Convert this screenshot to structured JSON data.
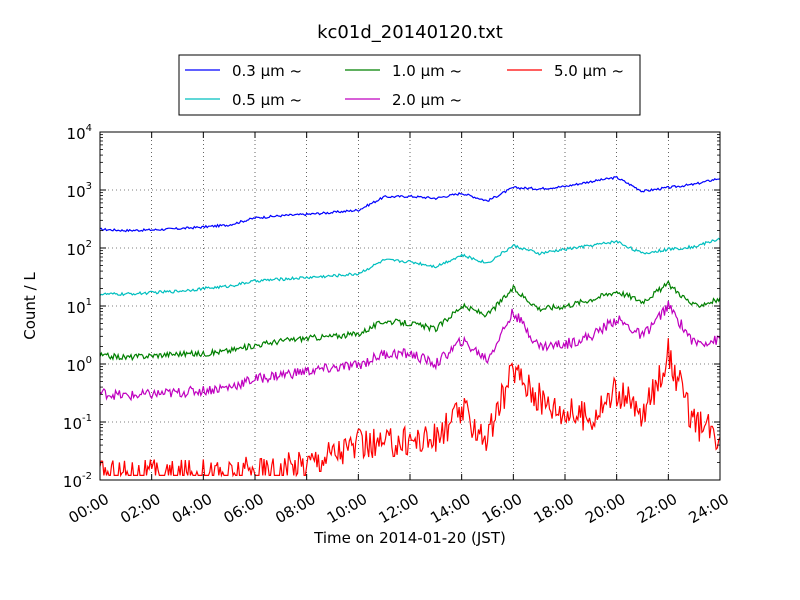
{
  "chart_data": {
    "type": "line",
    "title": "kc01d_20140120.txt",
    "xlabel": "Time on 2014-01-20 (JST)",
    "ylabel": "Count / L",
    "yscale": "log",
    "xlim": [
      "00:00",
      "24:00"
    ],
    "ylim": [
      0.01,
      10000
    ],
    "x_ticks": [
      "00:00",
      "02:00",
      "04:00",
      "06:00",
      "08:00",
      "10:00",
      "12:00",
      "14:00",
      "16:00",
      "18:00",
      "20:00",
      "22:00",
      "24:00"
    ],
    "y_ticks": [
      {
        "value": 0.01,
        "base": "10",
        "exp": "-2"
      },
      {
        "value": 0.1,
        "base": "10",
        "exp": "-1"
      },
      {
        "value": 1,
        "base": "10",
        "exp": "0"
      },
      {
        "value": 10,
        "base": "10",
        "exp": "1"
      },
      {
        "value": 100,
        "base": "10",
        "exp": "2"
      },
      {
        "value": 1000,
        "base": "10",
        "exp": "3"
      },
      {
        "value": 10000,
        "base": "10",
        "exp": "4"
      }
    ],
    "grid": true,
    "legend_position": "top-center",
    "x_hours": [
      0,
      1,
      2,
      3,
      4,
      5,
      6,
      7,
      8,
      9,
      10,
      11,
      12,
      13,
      14,
      15,
      16,
      17,
      18,
      19,
      20,
      21,
      22,
      23,
      24
    ],
    "series": [
      {
        "name": "0.3 μm ~",
        "color": "#0000ff",
        "values": [
          210,
          200,
          205,
          215,
          230,
          250,
          330,
          360,
          380,
          410,
          450,
          760,
          780,
          720,
          880,
          650,
          1100,
          1050,
          1150,
          1400,
          1650,
          950,
          1100,
          1250,
          1600
        ]
      },
      {
        "name": "0.5 μm ~",
        "color": "#00bfbf",
        "values": [
          16,
          16,
          17,
          18,
          20,
          22,
          27,
          29,
          31,
          33,
          36,
          62,
          58,
          48,
          75,
          55,
          110,
          80,
          95,
          110,
          130,
          80,
          95,
          105,
          145
        ]
      },
      {
        "name": "1.0 μm ~",
        "color": "#008000",
        "values": [
          1.4,
          1.3,
          1.4,
          1.5,
          1.5,
          1.7,
          2.1,
          2.5,
          2.8,
          3.0,
          3.3,
          5.5,
          5.0,
          4.0,
          10,
          7,
          20,
          9,
          10,
          13,
          18,
          12,
          24,
          10,
          13
        ]
      },
      {
        "name": "2.0 μm ~",
        "color": "#bf00bf",
        "values": [
          0.32,
          0.28,
          0.3,
          0.32,
          0.35,
          0.4,
          0.55,
          0.65,
          0.75,
          0.85,
          0.95,
          1.5,
          1.5,
          1.0,
          2.5,
          1.2,
          8.0,
          2.0,
          2.2,
          3.0,
          6.0,
          3.0,
          10,
          2.3,
          2.6
        ]
      },
      {
        "name": "5.0 μm ~",
        "color": "#ff0000",
        "values": [
          0.012,
          0.013,
          0.012,
          0.012,
          0.013,
          0.012,
          0.014,
          0.015,
          0.02,
          0.03,
          0.04,
          0.04,
          0.05,
          0.05,
          0.16,
          0.05,
          0.85,
          0.25,
          0.15,
          0.12,
          0.35,
          0.12,
          1.5,
          0.09,
          0.06
        ]
      }
    ]
  }
}
